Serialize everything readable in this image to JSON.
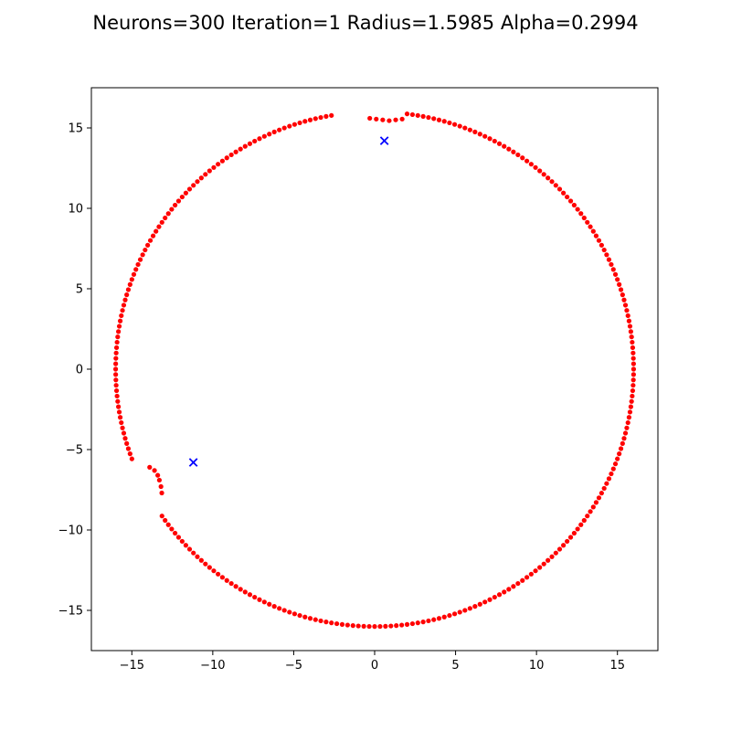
{
  "chart_data": {
    "type": "scatter",
    "title": "Neurons=300 Iteration=1 Radius=1.5985 Alpha=0.2994",
    "xlabel": "",
    "ylabel": "",
    "xlim": [
      -17.5,
      17.5
    ],
    "ylim": [
      -17.5,
      17.5
    ],
    "xticks": [
      -15,
      -10,
      -5,
      0,
      5,
      10,
      15
    ],
    "yticks": [
      -15,
      -10,
      -5,
      0,
      5,
      10,
      15
    ],
    "xtick_labels": [
      "−15",
      "−10",
      "−5",
      "0",
      "5",
      "10",
      "15"
    ],
    "ytick_labels": [
      "−15",
      "−10",
      "−5",
      "0",
      "5",
      "10",
      "15"
    ],
    "grid": false,
    "neuron_count": 300,
    "neuron_ring_radius": 16,
    "neuron_gaps": [
      {
        "from_x": 0,
        "from_y": 15.6,
        "to_x": 2.3,
        "to_y": 15.8
      },
      {
        "from_x": -14.8,
        "from_y": -5.9,
        "to_x": -13.5,
        "to_y": -8.6
      }
    ],
    "neuron_deformations": [
      {
        "angle_from_deg": 83,
        "angle_to_deg": 94,
        "points": [
          [
            -0.3,
            15.6
          ],
          [
            0.1,
            15.55
          ],
          [
            0.5,
            15.5
          ],
          [
            0.9,
            15.45
          ],
          [
            1.3,
            15.5
          ],
          [
            1.7,
            15.55
          ]
        ]
      },
      {
        "angle_from_deg": 203,
        "angle_to_deg": 212,
        "points": [
          [
            -13.9,
            -6.1
          ],
          [
            -13.6,
            -6.3
          ],
          [
            -13.4,
            -6.6
          ],
          [
            -13.3,
            -6.9
          ],
          [
            -13.2,
            -7.3
          ],
          [
            -13.15,
            -7.7
          ]
        ]
      }
    ],
    "series": [
      {
        "name": "",
        "marker": "dot",
        "color": "#ff0000"
      },
      {
        "name": "",
        "marker": "x",
        "color": "#0000ff",
        "points": [
          [
            0.6,
            14.2
          ],
          [
            -11.2,
            -5.8
          ]
        ]
      }
    ]
  }
}
